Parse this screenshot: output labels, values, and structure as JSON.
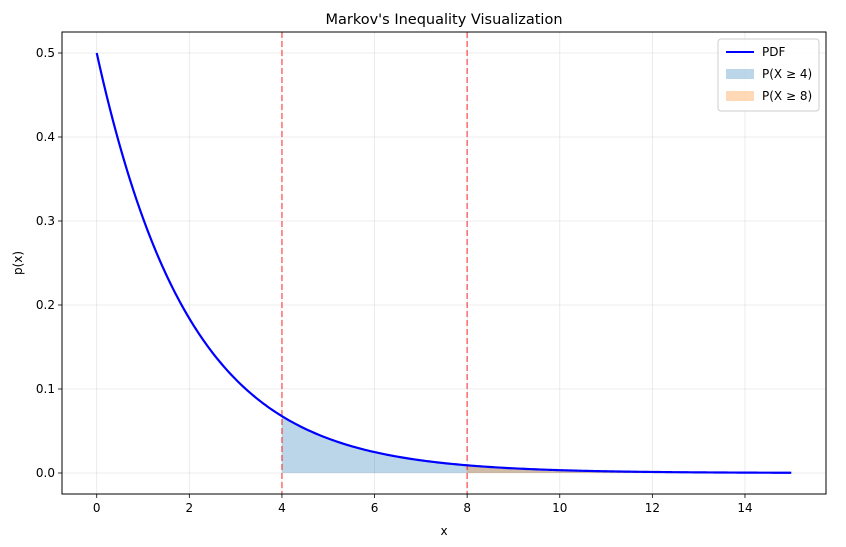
{
  "chart_data": {
    "type": "line",
    "title": "Markov's Inequality Visualization",
    "xlabel": "x",
    "ylabel": "p(x)",
    "xlim": [
      -0.75,
      15.75
    ],
    "ylim": [
      -0.025,
      0.525
    ],
    "xticks": [
      0,
      2,
      4,
      6,
      8,
      10,
      12,
      14
    ],
    "yticks": [
      0.0,
      0.1,
      0.2,
      0.3,
      0.4,
      0.5
    ],
    "grid": true,
    "legend_position": "top-right",
    "series": [
      {
        "name": "PDF",
        "kind": "line",
        "color": "#0000ff",
        "x": [
          0,
          0.5,
          1,
          1.5,
          2,
          2.5,
          3,
          3.5,
          4,
          4.5,
          5,
          5.5,
          6,
          6.5,
          7,
          7.5,
          8,
          8.5,
          9,
          9.5,
          10,
          10.5,
          11,
          11.5,
          12,
          12.5,
          13,
          13.5,
          14,
          14.5,
          15
        ],
        "y": [
          0.5,
          0.3894,
          0.3033,
          0.2362,
          0.1839,
          0.1433,
          0.1116,
          0.0869,
          0.0677,
          0.0527,
          0.041,
          0.032,
          0.0249,
          0.0194,
          0.0151,
          0.0118,
          0.0092,
          0.0071,
          0.0056,
          0.0043,
          0.0034,
          0.0026,
          0.002,
          0.0016,
          0.0012,
          0.001,
          0.0008,
          0.0006,
          0.0005,
          0.0004,
          0.0003
        ]
      },
      {
        "name": "P(X ≥ 4)",
        "kind": "area",
        "color": "#1f77b4",
        "opacity": 0.3,
        "x_from": 4,
        "x_to": 15
      },
      {
        "name": "P(X ≥ 8)",
        "kind": "area",
        "color": "#ff7f0e",
        "opacity": 0.3,
        "x_from": 8,
        "x_to": 15
      }
    ],
    "vlines": [
      {
        "x": 4,
        "color": "#ff0000",
        "style": "dashed",
        "opacity": 0.55
      },
      {
        "x": 8,
        "color": "#ff0000",
        "style": "dashed",
        "opacity": 0.55
      }
    ]
  }
}
